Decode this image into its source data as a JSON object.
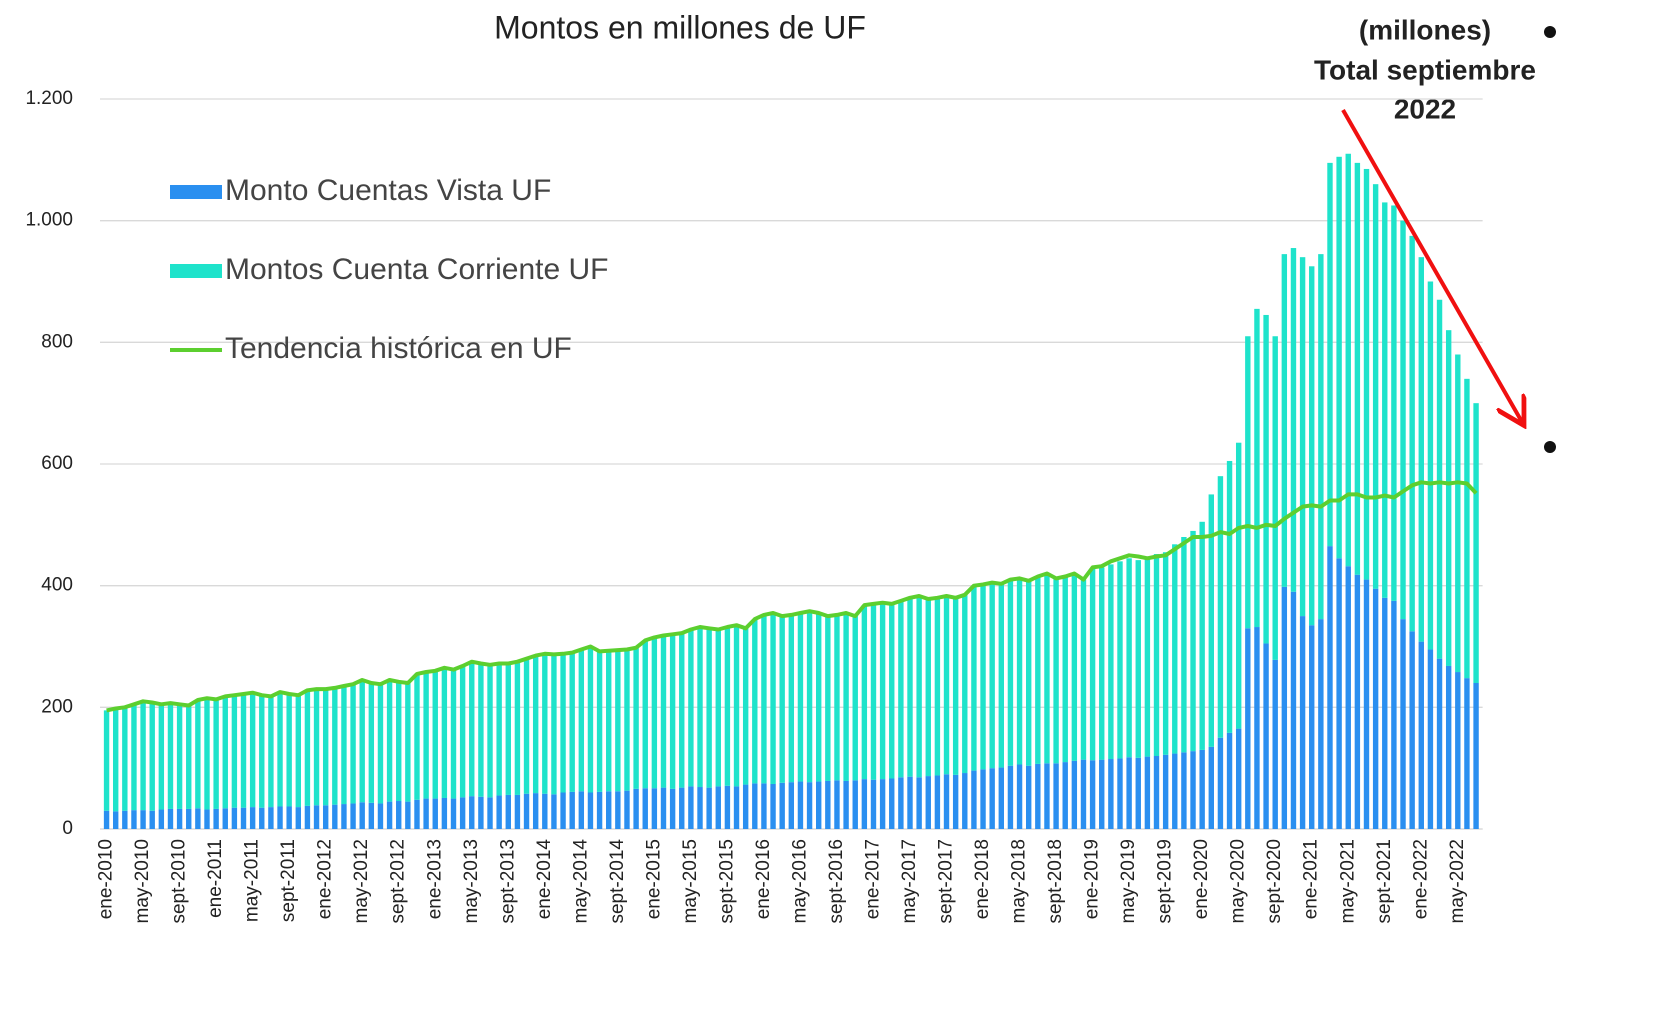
{
  "chart_data": {
    "type": "bar",
    "title": "Montos en millones de UF",
    "annotation": [
      "(millones)",
      "Total septiembre",
      "2022"
    ],
    "categories": [
      "ene-2010",
      null,
      null,
      null,
      "may-2010",
      null,
      null,
      null,
      "sept-2010",
      null,
      null,
      null,
      "ene-2011",
      null,
      null,
      null,
      "may-2011",
      null,
      null,
      null,
      "sept-2011",
      null,
      null,
      null,
      "ene-2012",
      null,
      null,
      null,
      "may-2012",
      null,
      null,
      null,
      "sept-2012",
      null,
      null,
      null,
      "ene-2013",
      null,
      null,
      null,
      "may-2013",
      null,
      null,
      null,
      "sept-2013",
      null,
      null,
      null,
      "ene-2014",
      null,
      null,
      null,
      "may-2014",
      null,
      null,
      null,
      "sept-2014",
      null,
      null,
      null,
      "ene-2015",
      null,
      null,
      null,
      "may-2015",
      null,
      null,
      null,
      "sept-2015",
      null,
      null,
      null,
      "ene-2016",
      null,
      null,
      null,
      "may-2016",
      null,
      null,
      null,
      "sept-2016",
      null,
      null,
      null,
      "ene-2017",
      null,
      null,
      null,
      "may-2017",
      null,
      null,
      null,
      "sept-2017",
      null,
      null,
      null,
      "ene-2018",
      null,
      null,
      null,
      "may-2018",
      null,
      null,
      null,
      "sept-2018",
      null,
      null,
      null,
      "ene-2019",
      null,
      null,
      null,
      "may-2019",
      null,
      null,
      null,
      "sept-2019",
      null,
      null,
      null,
      "ene-2020",
      null,
      null,
      null,
      "may-2020",
      null,
      null,
      null,
      "sept-2020",
      null,
      null,
      null,
      "ene-2021",
      null,
      null,
      null,
      "may-2021",
      null,
      null,
      null,
      "sept-2021",
      null,
      null,
      null,
      "ene-2022",
      null,
      null,
      null,
      "may-2022",
      null,
      null
    ],
    "series": [
      {
        "name": "Monto Cuentas Vista UF",
        "color": "#2a8ff0",
        "kind": "bar",
        "values": [
          30,
          29,
          30,
          31,
          31,
          30,
          32,
          33,
          33,
          33,
          34,
          32,
          33,
          34,
          35,
          35,
          36,
          35,
          36,
          37,
          37,
          36,
          38,
          39,
          39,
          40,
          41,
          42,
          44,
          43,
          42,
          45,
          46,
          45,
          48,
          50,
          50,
          51,
          50,
          52,
          54,
          53,
          52,
          55,
          56,
          56,
          58,
          59,
          58,
          57,
          60,
          61,
          62,
          60,
          61,
          62,
          62,
          63,
          66,
          67,
          67,
          68,
          66,
          68,
          70,
          69,
          68,
          70,
          71,
          70,
          73,
          75,
          75,
          74,
          76,
          77,
          78,
          77,
          78,
          79,
          80,
          79,
          80,
          82,
          81,
          82,
          83,
          85,
          86,
          85,
          87,
          88,
          90,
          89,
          92,
          96,
          98,
          100,
          101,
          104,
          106,
          104,
          107,
          108,
          108,
          110,
          112,
          114,
          113,
          114,
          115,
          116,
          118,
          117,
          119,
          120,
          122,
          124,
          126,
          128,
          130,
          135,
          150,
          158,
          165,
          330,
          332,
          305,
          278,
          398,
          390,
          350,
          335,
          345,
          465,
          445,
          432,
          418,
          410,
          395,
          380,
          375,
          345,
          325,
          308,
          295,
          280,
          268,
          258,
          248,
          240
        ]
      },
      {
        "name": "Montos Cuenta Corriente UF",
        "color": "#1ee3cb",
        "kind": "bar",
        "values": [
          165,
          169,
          170,
          174,
          179,
          178,
          173,
          174,
          172,
          170,
          178,
          183,
          180,
          184,
          185,
          187,
          188,
          185,
          182,
          188,
          185,
          184,
          190,
          191,
          191,
          192,
          194,
          196,
          201,
          197,
          196,
          200,
          196,
          195,
          207,
          208,
          210,
          214,
          212,
          216,
          221,
          219,
          218,
          217,
          216,
          219,
          222,
          226,
          230,
          230,
          228,
          229,
          233,
          240,
          231,
          231,
          232,
          232,
          232,
          243,
          248,
          250,
          254,
          254,
          258,
          263,
          262,
          258,
          261,
          265,
          257,
          270,
          277,
          281,
          274,
          275,
          277,
          281,
          277,
          271,
          272,
          276,
          270,
          286,
          289,
          290,
          287,
          290,
          294,
          298,
          291,
          292,
          293,
          291,
          293,
          304,
          304,
          305,
          302,
          306,
          306,
          304,
          308,
          312,
          304,
          305,
          308,
          296,
          315,
          316,
          320,
          324,
          327,
          325,
          329,
          332,
          333,
          344,
          354,
          362,
          375,
          415,
          430,
          447,
          470,
          480,
          523,
          540,
          532,
          547,
          565,
          590,
          590,
          600,
          630,
          660,
          678,
          677,
          675,
          665,
          650,
          650,
          655,
          650,
          632,
          605,
          590,
          552,
          522,
          492,
          460
        ]
      },
      {
        "name": "Tendencia histórica en UF",
        "color": "#5ccf2f",
        "kind": "line",
        "values": [
          195,
          198,
          200,
          205,
          210,
          208,
          205,
          207,
          205,
          203,
          212,
          215,
          213,
          218,
          220,
          222,
          224,
          220,
          218,
          225,
          222,
          220,
          228,
          230,
          230,
          232,
          235,
          238,
          245,
          240,
          238,
          245,
          242,
          240,
          255,
          258,
          260,
          265,
          262,
          268,
          275,
          272,
          270,
          272,
          272,
          275,
          280,
          285,
          288,
          287,
          288,
          290,
          295,
          300,
          292,
          293,
          294,
          295,
          298,
          310,
          315,
          318,
          320,
          322,
          328,
          332,
          330,
          328,
          332,
          335,
          330,
          345,
          352,
          355,
          350,
          352,
          355,
          358,
          355,
          350,
          352,
          355,
          350,
          368,
          370,
          372,
          370,
          375,
          380,
          383,
          378,
          380,
          383,
          380,
          385,
          400,
          402,
          405,
          403,
          410,
          412,
          408,
          415,
          420,
          412,
          415,
          420,
          410,
          430,
          432,
          440,
          445,
          450,
          448,
          445,
          448,
          450,
          460,
          470,
          480,
          480,
          482,
          488,
          485,
          495,
          498,
          495,
          500,
          498,
          510,
          520,
          530,
          532,
          530,
          540,
          540,
          550,
          550,
          545,
          545,
          548,
          545,
          555,
          565,
          570,
          568,
          570,
          568,
          570,
          568,
          552
        ]
      }
    ],
    "ylim": [
      0,
      1200
    ],
    "yticks": [
      0,
      200,
      400,
      600,
      800,
      {
        "value": 1000,
        "label": "1.000"
      },
      {
        "value": 1200,
        "label": "1.200"
      }
    ],
    "grid": true,
    "legend": "upper left"
  }
}
